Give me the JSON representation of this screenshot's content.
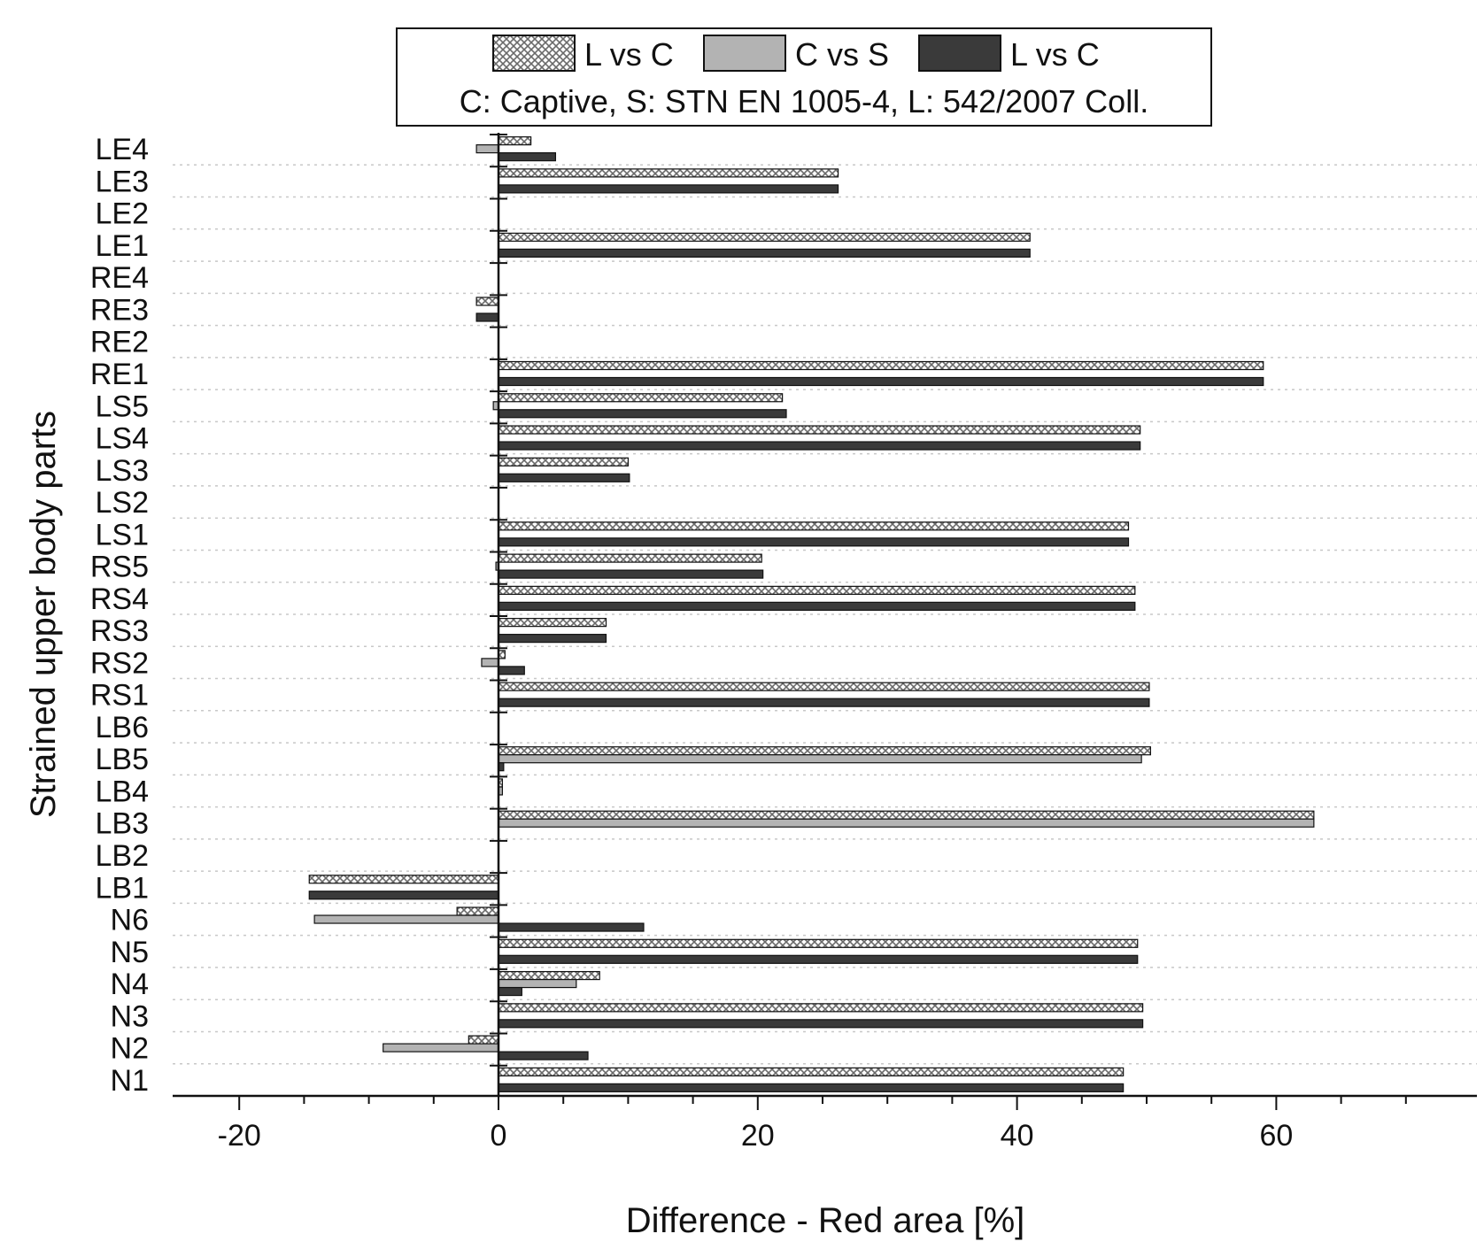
{
  "chart_data": {
    "type": "bar",
    "orientation": "horizontal",
    "xlabel": "Difference - Red area [%]",
    "ylabel": "Strained upper body parts",
    "xlim": [
      -24,
      72
    ],
    "xticks": [
      -20,
      0,
      20,
      40,
      60
    ],
    "grid": "horizontal dotted",
    "legend_position": "top",
    "legend_note": "C: Captive, S: STN EN 1005-4, L: 542/2007 Coll.",
    "categories": [
      "LE4",
      "LE3",
      "LE2",
      "LE1",
      "RE4",
      "RE3",
      "RE2",
      "RE1",
      "LS5",
      "LS4",
      "LS3",
      "LS2",
      "LS1",
      "RS5",
      "RS4",
      "RS3",
      "RS2",
      "RS1",
      "LB6",
      "LB5",
      "LB4",
      "LB3",
      "LB2",
      "LB1",
      "N6",
      "N5",
      "N4",
      "N3",
      "N2",
      "N1"
    ],
    "series": [
      {
        "name": "L vs C",
        "pattern": "crosshatch",
        "color": "#b8b8b8",
        "values": [
          2.5,
          26.2,
          0,
          41.0,
          0,
          -1.7,
          0,
          59.0,
          21.9,
          49.5,
          10.0,
          0,
          48.6,
          20.3,
          49.1,
          8.3,
          0.5,
          50.2,
          0,
          50.3,
          0.3,
          62.9,
          0,
          -14.6,
          -3.2,
          49.3,
          7.8,
          49.7,
          -2.3,
          48.2
        ]
      },
      {
        "name": "C vs S",
        "pattern": "solid",
        "color": "#b3b3b3",
        "values": [
          -1.7,
          0,
          0,
          0,
          0,
          0,
          0,
          0,
          -0.4,
          0,
          0,
          0,
          0,
          -0.2,
          0,
          0,
          -1.3,
          0,
          0,
          49.6,
          0.3,
          62.9,
          0,
          0,
          -14.2,
          0,
          6.0,
          0,
          -8.9,
          0
        ]
      },
      {
        "name": "L vs C",
        "pattern": "solid",
        "color": "#3a3a3a",
        "values": [
          4.4,
          26.2,
          0,
          41.0,
          0,
          -1.7,
          0,
          59.0,
          22.2,
          49.5,
          10.1,
          0,
          48.6,
          20.4,
          49.1,
          8.3,
          2.0,
          50.2,
          0,
          0.4,
          0,
          0,
          0,
          -14.6,
          11.2,
          49.3,
          1.8,
          49.7,
          6.9,
          48.2
        ]
      }
    ]
  }
}
